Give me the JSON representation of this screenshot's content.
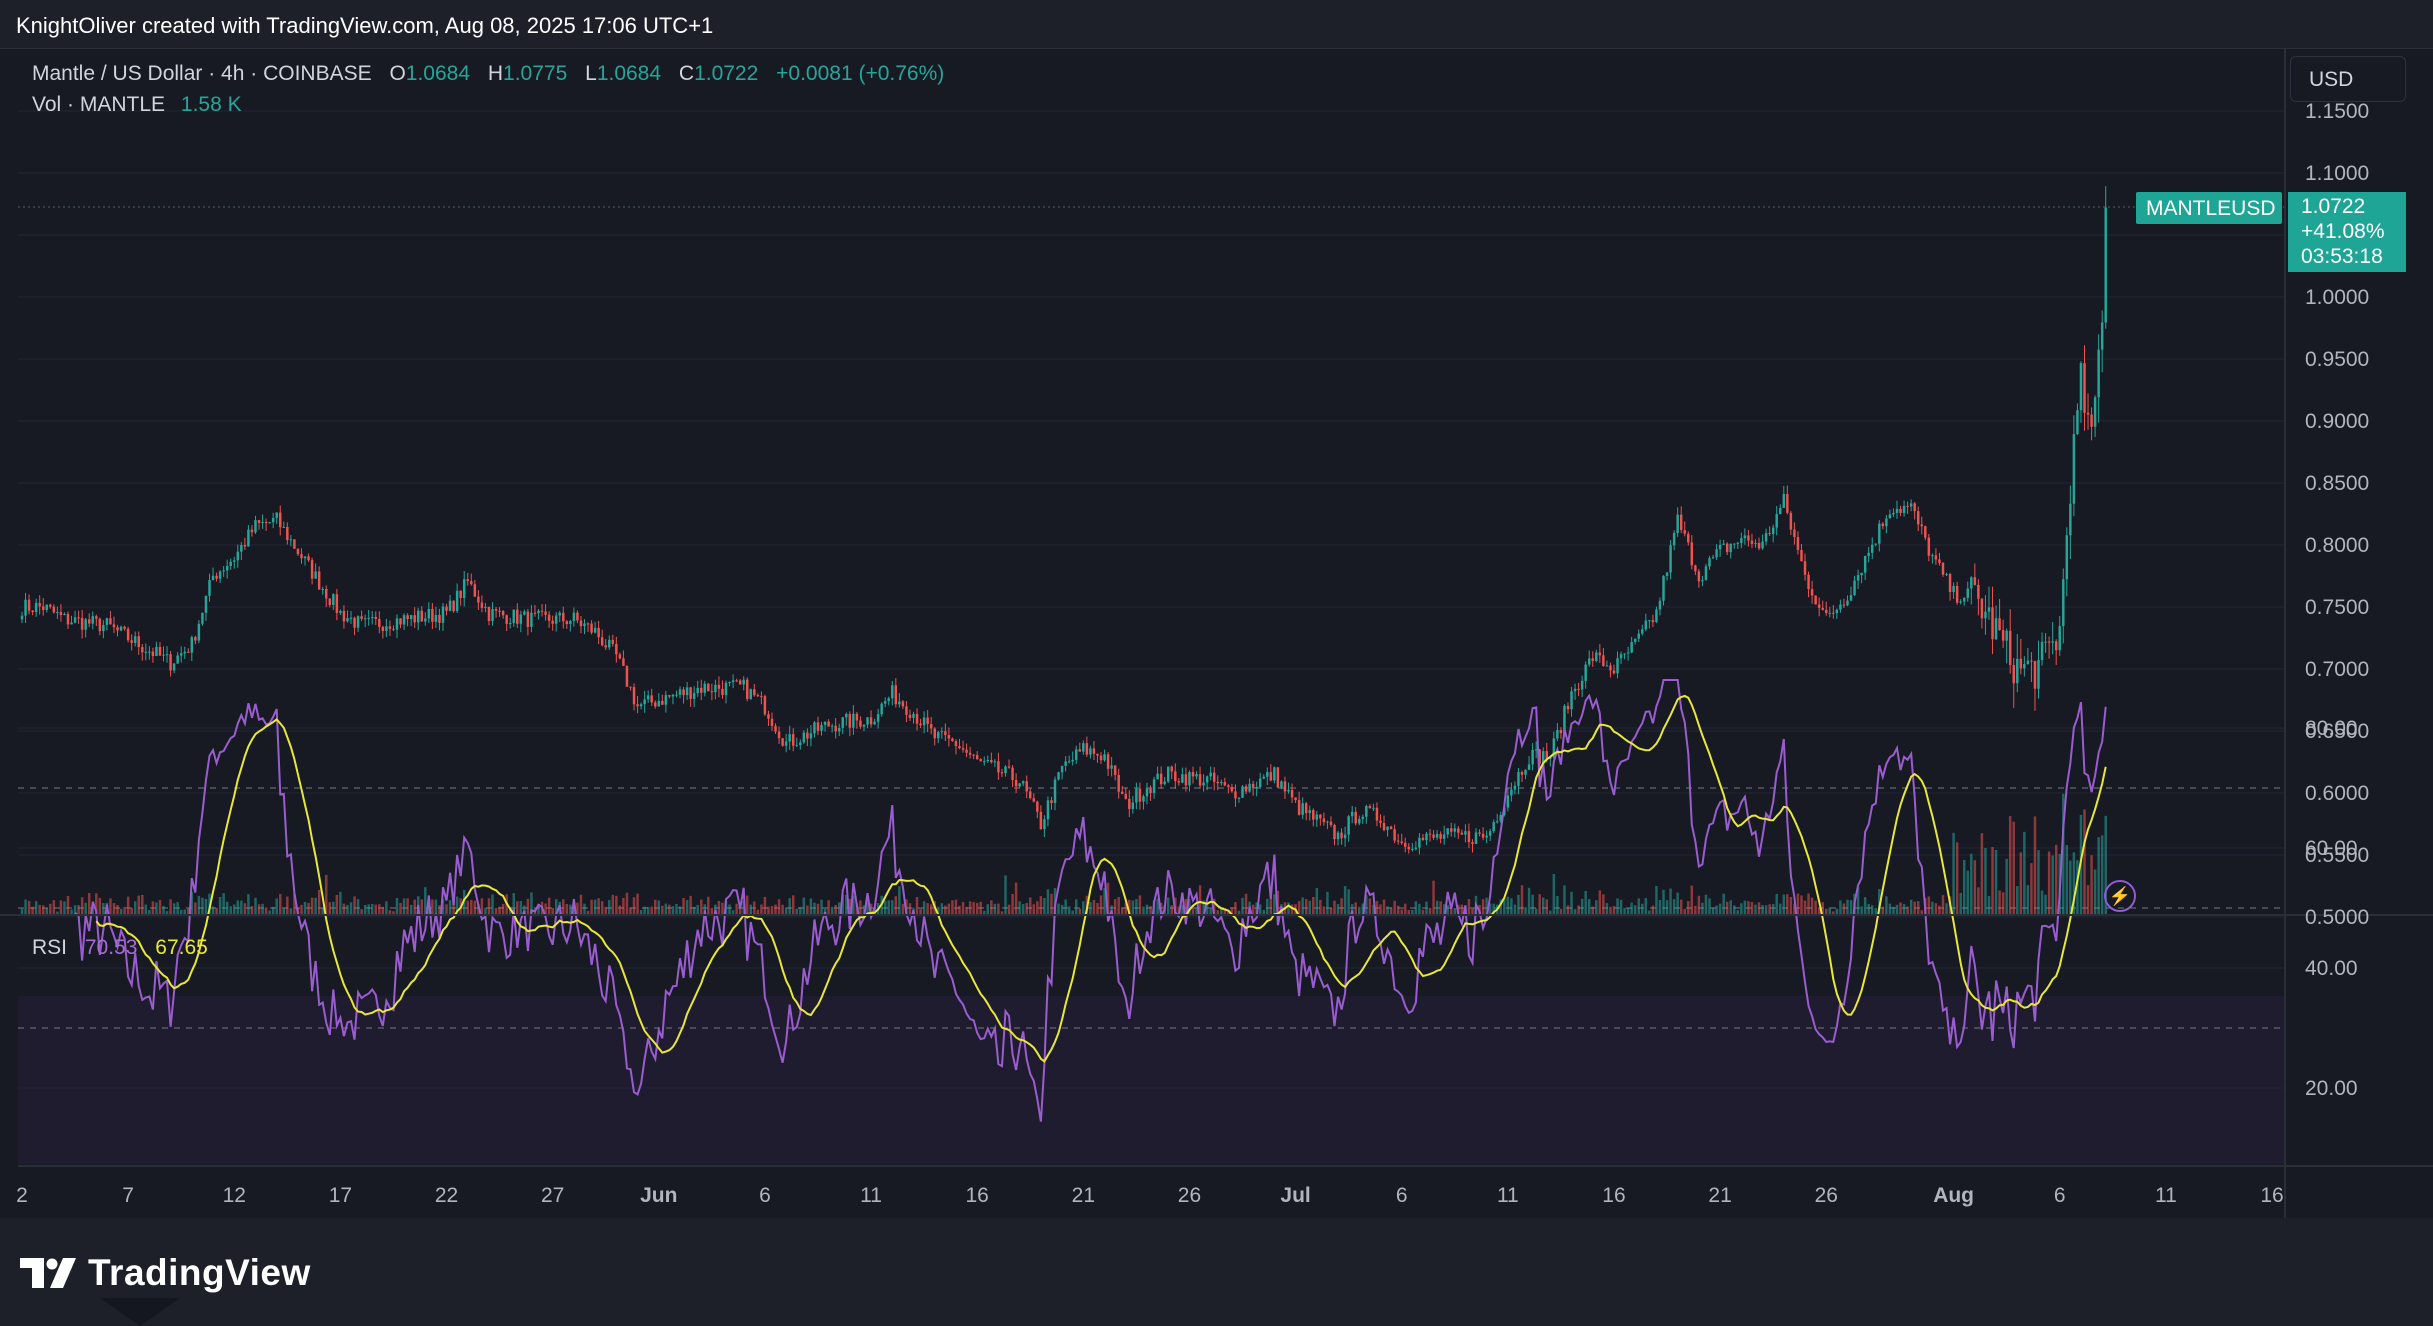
{
  "header": {
    "attribution": "KnightOliver created with TradingView.com, Aug 08, 2025 17:06 UTC+1"
  },
  "legend": {
    "title": "Mantle / US Dollar · 4h · COINBASE",
    "open_label": "O",
    "open": "1.0684",
    "high_label": "H",
    "high": "1.0775",
    "low_label": "L",
    "low": "1.0684",
    "close_label": "C",
    "close": "1.0722",
    "change": "+0.0081 (+0.76%)",
    "volume_label": "Vol · MANTLE",
    "volume": "1.58 K"
  },
  "currency_button": "USD",
  "price_tag": {
    "symbol": "MANTLEUSD",
    "price": "1.0722",
    "change_pct": "+41.08%",
    "countdown": "03:53:18"
  },
  "rsi_legend": {
    "label": "RSI",
    "rsi": "70.53",
    "rsi_ma": "67.65"
  },
  "price_axis": [
    "1.1500",
    "1.1000",
    "1.0500",
    "1.0000",
    "0.9500",
    "0.9000",
    "0.8500",
    "0.8000",
    "0.7500",
    "0.7000",
    "0.6500",
    "0.6000",
    "0.5500",
    "0.5000"
  ],
  "rsi_axis": [
    "80.00",
    "60.00",
    "40.00",
    "20.00"
  ],
  "time_axis": [
    "2",
    "7",
    "12",
    "17",
    "22",
    "27",
    "Jun",
    "6",
    "11",
    "16",
    "21",
    "26",
    "Jul",
    "6",
    "11",
    "16",
    "21",
    "26",
    "Aug",
    "6",
    "11",
    "16"
  ],
  "footer": {
    "brand": "TradingView"
  },
  "colors": {
    "up": "#26a69a",
    "down": "#ef5350",
    "rsi": "#9a5dd0",
    "rsi_ma": "#e8e83a",
    "background": "#171a23"
  },
  "chart_data": {
    "type": "candlestick",
    "symbol": "MANTLEUSD",
    "interval": "4h",
    "ylim": [
      0.5,
      1.15
    ],
    "price_path": [
      [
        "May 2",
        0.75
      ],
      [
        "May 3",
        0.74
      ],
      [
        "May 5",
        0.735
      ],
      [
        "May 7",
        0.715
      ],
      [
        "May 8",
        0.705
      ],
      [
        "May 9",
        0.72
      ],
      [
        "May 10",
        0.775
      ],
      [
        "May 11",
        0.79
      ],
      [
        "May 12",
        0.815
      ],
      [
        "May 13",
        0.82
      ],
      [
        "May 14",
        0.795
      ],
      [
        "May 15",
        0.77
      ],
      [
        "May 16",
        0.745
      ],
      [
        "May 17",
        0.735
      ],
      [
        "May 19",
        0.74
      ],
      [
        "May 21",
        0.745
      ],
      [
        "May 22",
        0.77
      ],
      [
        "May 23",
        0.745
      ],
      [
        "May 25",
        0.74
      ],
      [
        "May 27",
        0.74
      ],
      [
        "May 28",
        0.73
      ],
      [
        "May 29",
        0.71
      ],
      [
        "May 30",
        0.67
      ],
      [
        "Jun 2",
        0.685
      ],
      [
        "Jun 4",
        0.685
      ],
      [
        "Jun 5",
        0.67
      ],
      [
        "Jun 6",
        0.64
      ],
      [
        "Jun 8",
        0.655
      ],
      [
        "Jun 10",
        0.66
      ],
      [
        "Jun 11",
        0.68
      ],
      [
        "Jun 12",
        0.665
      ],
      [
        "Jun 13",
        0.645
      ],
      [
        "Jun 14",
        0.64
      ],
      [
        "Jun 15",
        0.625
      ],
      [
        "Jun 17",
        0.61
      ],
      [
        "Jun 18",
        0.575
      ],
      [
        "Jun 19",
        0.62
      ],
      [
        "Jun 20",
        0.635
      ],
      [
        "Jun 21",
        0.63
      ],
      [
        "Jun 22",
        0.59
      ],
      [
        "Jun 23",
        0.605
      ],
      [
        "Jun 24",
        0.615
      ],
      [
        "Jun 26",
        0.61
      ],
      [
        "Jun 27",
        0.6
      ],
      [
        "Jun 29",
        0.615
      ],
      [
        "Jun 30",
        0.59
      ],
      [
        "Jul 2",
        0.565
      ],
      [
        "Jul 3",
        0.585
      ],
      [
        "Jul 4",
        0.58
      ],
      [
        "Jul 5",
        0.56
      ],
      [
        "Jul 7",
        0.565
      ],
      [
        "Jul 9",
        0.565
      ],
      [
        "Jul 10",
        0.6
      ],
      [
        "Jul 11",
        0.63
      ],
      [
        "Jul 12",
        0.63
      ],
      [
        "Jul 13",
        0.68
      ],
      [
        "Jul 14",
        0.71
      ],
      [
        "Jul 15",
        0.7
      ],
      [
        "Jul 16",
        0.72
      ],
      [
        "Jul 17",
        0.745
      ],
      [
        "Jul 18",
        0.82
      ],
      [
        "Jul 19",
        0.775
      ],
      [
        "Jul 20",
        0.795
      ],
      [
        "Jul 21",
        0.805
      ],
      [
        "Jul 22",
        0.8
      ],
      [
        "Jul 23",
        0.835
      ],
      [
        "Jul 24",
        0.775
      ],
      [
        "Jul 25",
        0.74
      ],
      [
        "Jul 26",
        0.76
      ],
      [
        "Jul 28",
        0.83
      ],
      [
        "Jul 29",
        0.83
      ],
      [
        "Jul 30",
        0.79
      ],
      [
        "Jul 31",
        0.76
      ],
      [
        "Aug 1",
        0.76
      ],
      [
        "Aug 2",
        0.73
      ],
      [
        "Aug 3",
        0.7
      ],
      [
        "Aug 4",
        0.7
      ],
      [
        "Aug 5",
        0.73
      ],
      [
        "Aug 5",
        0.85
      ],
      [
        "Aug 6",
        0.93
      ],
      [
        "Aug 6",
        0.88
      ],
      [
        "Aug 7",
        0.99
      ],
      [
        "Aug 7",
        1.07
      ],
      [
        "Aug 8",
        1.0722
      ]
    ],
    "rsi_ylim": [
      10,
      90
    ],
    "rsi_levels": [
      70,
      50,
      30
    ]
  }
}
